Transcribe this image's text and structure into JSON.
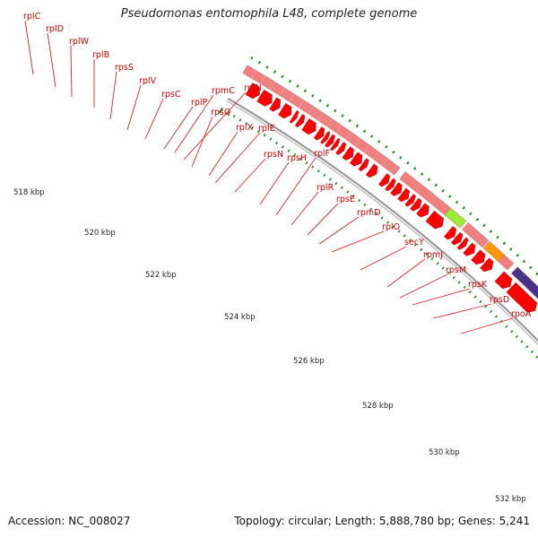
{
  "title": "Pseudomonas entomophila L48, complete genome",
  "footer": {
    "accession": "Accession: NC_008027",
    "summary": "Topology: circular; Length: 5,888,780 bp; Genes: 5,241"
  },
  "colors": {
    "gene_label": "#cc0000",
    "gene_arrow": "#ff0000",
    "cds_band": "#f08080",
    "highlight_green": "#99ee33",
    "highlight_orange": "#ff9900",
    "highlight_purple": "#443388",
    "highlight_magenta": "#ff33aa",
    "backbone": "#888888",
    "tick": "#1a8c1a"
  },
  "scale_labels": [
    "518 kbp",
    "520 kbp",
    "522 kbp",
    "524 kbp",
    "526 kbp",
    "528 kbp",
    "530 kbp",
    "532 kbp"
  ],
  "gene_labels": [
    "rplC",
    "rplD",
    "rplW",
    "rplB",
    "rpsS",
    "rplV",
    "rpsC",
    "rplP",
    "rpmC",
    "rplN",
    "rpsQ",
    "rplX",
    "rplE",
    "rpsN",
    "rpsH",
    "rplF",
    "rplR",
    "rpsE",
    "rpmD",
    "rplO",
    "secY",
    "rpmJ",
    "rpsM",
    "rpsK",
    "rpsD",
    "rpoA"
  ]
}
